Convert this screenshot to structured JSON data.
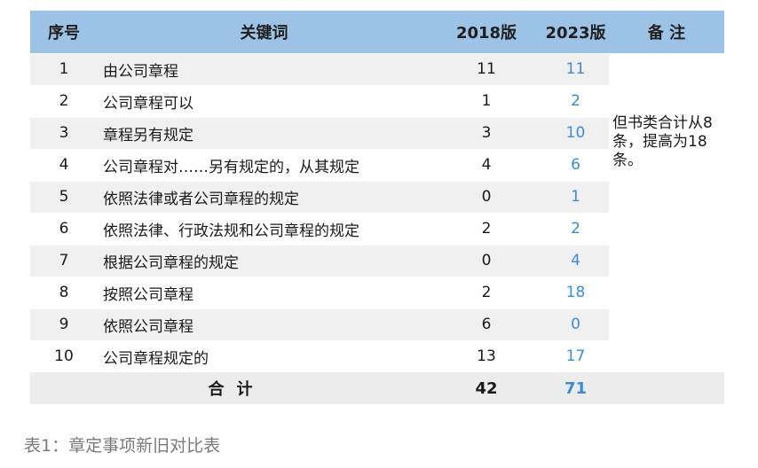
{
  "table": {
    "headers": {
      "num": "序号",
      "keyword": "关键词",
      "y2018": "2018版",
      "y2023": "2023版",
      "note": "备 注"
    },
    "rows": [
      {
        "num": "1",
        "keyword": "由公司章程",
        "y2018": "11",
        "y2023": "11"
      },
      {
        "num": "2",
        "keyword": "公司章程可以",
        "y2018": "1",
        "y2023": "2"
      },
      {
        "num": "3",
        "keyword": "章程另有规定",
        "y2018": "3",
        "y2023": "10"
      },
      {
        "num": "4",
        "keyword": "公司章程对……另有规定的，从其规定",
        "y2018": "4",
        "y2023": "6"
      },
      {
        "num": "5",
        "keyword": "依照法律或者公司章程的规定",
        "y2018": "0",
        "y2023": "1"
      },
      {
        "num": "6",
        "keyword": "依照法律、行政法规和公司章程的规定",
        "y2018": "2",
        "y2023": "2"
      },
      {
        "num": "7",
        "keyword": "根据公司章程的规定",
        "y2018": "0",
        "y2023": "4"
      },
      {
        "num": "8",
        "keyword": "按照公司章程",
        "y2018": "2",
        "y2023": "18"
      },
      {
        "num": "9",
        "keyword": "依照公司章程",
        "y2018": "6",
        "y2023": "0"
      },
      {
        "num": "10",
        "keyword": "公司章程规定的",
        "y2018": "13",
        "y2023": "17"
      }
    ],
    "note": "但书类合计从8条，提高为18条。",
    "total": {
      "label": "合计",
      "y2018": "42",
      "y2023": "71"
    }
  },
  "caption": "表1：章定事项新旧对比表",
  "colors": {
    "header_bg": "#9cc2e5",
    "stripe_bg": "#f0f0f0",
    "accent_blue": "#3d8bd9",
    "caption_gray": "#7a7a7a"
  }
}
